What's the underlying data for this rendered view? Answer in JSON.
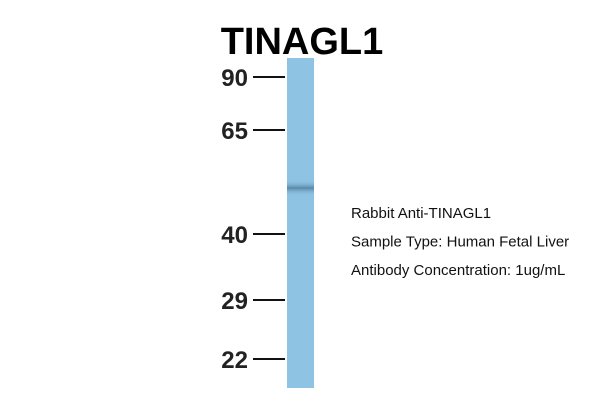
{
  "title": "TINAGL1",
  "markers": [
    "90",
    "65",
    "40",
    "29",
    "22"
  ],
  "annotations": [
    "Rabbit Anti-TINAGL1",
    "Sample Type: Human Fetal Liver",
    "Antibody Concentration: 1ug/mL"
  ]
}
